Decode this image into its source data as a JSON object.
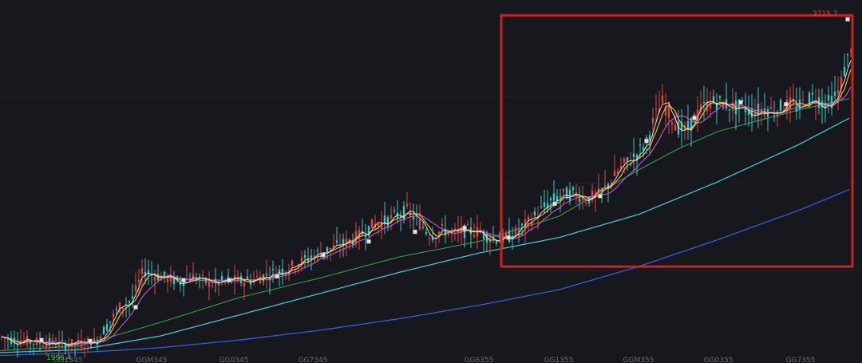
{
  "chart_data": {
    "type": "line",
    "series_type": "candlestick",
    "title": "",
    "xlabel": "",
    "ylabel": "",
    "ylim": [
      1950,
      3750
    ],
    "x_ticks": [
      "GG1345",
      "GGM345",
      "GG0345",
      "GG7345",
      "GG6355",
      "GG1355",
      "GGM355",
      "GG0355",
      "GG7355"
    ],
    "low_label": "1996.4",
    "high_label": "3715.7",
    "colors": {
      "up": "#e2453c",
      "down": "#39c6c1",
      "ma5": "#e8e8e8",
      "ma10": "#f2c230",
      "ma20": "#c459d8",
      "ma60": "#3f9a52",
      "ma120": "#45c4cf",
      "ma250": "#3b5bd8",
      "highlight_box": "#c8231f",
      "low_label": "#3cbf4e",
      "high_label": "#e0463c",
      "marker": "#e6e6e6"
    },
    "trend": {
      "x": [
        0,
        20,
        40,
        60,
        80,
        100,
        120,
        135,
        150,
        165,
        180,
        195,
        210,
        225,
        240,
        255,
        270,
        285,
        300,
        315,
        330,
        345,
        360,
        375,
        390,
        405,
        420,
        435,
        450,
        465,
        480,
        495,
        510,
        525,
        540,
        555,
        570,
        585,
        600,
        615,
        630,
        645,
        660,
        675,
        690,
        705,
        720,
        735,
        750,
        765,
        780,
        795,
        810,
        820,
        830,
        840,
        850,
        860,
        870,
        880,
        890,
        900,
        910,
        920,
        930,
        940,
        950,
        960,
        970,
        980,
        990,
        1000,
        1010,
        1020,
        1030,
        1040,
        1050,
        1060,
        1068
      ],
      "y": [
        2055,
        2040,
        2030,
        2025,
        2015,
        2020,
        2030,
        2120,
        2210,
        2245,
        2400,
        2375,
        2360,
        2340,
        2370,
        2345,
        2330,
        2350,
        2345,
        2350,
        2370,
        2390,
        2410,
        2440,
        2470,
        2500,
        2520,
        2545,
        2580,
        2630,
        2650,
        2680,
        2710,
        2650,
        2580,
        2610,
        2590,
        2605,
        2600,
        2570,
        2560,
        2590,
        2640,
        2700,
        2760,
        2790,
        2800,
        2770,
        2790,
        2860,
        2940,
        2990,
        3060,
        3190,
        3270,
        3200,
        3140,
        3120,
        3190,
        3240,
        3270,
        3270,
        3260,
        3240,
        3250,
        3220,
        3230,
        3240,
        3220,
        3250,
        3260,
        3240,
        3280,
        3300,
        3270,
        3270,
        3320,
        3460,
        3600
      ]
    },
    "ma60": {
      "x": [
        0,
        100,
        200,
        300,
        400,
        500,
        600,
        700,
        800,
        850,
        900,
        1000,
        1065
      ],
      "y": [
        1985,
        2010,
        2130,
        2260,
        2360,
        2470,
        2550,
        2680,
        2920,
        3030,
        3120,
        3230,
        3290
      ]
    },
    "ma120": {
      "x": [
        0,
        100,
        200,
        300,
        400,
        500,
        600,
        700,
        800,
        900,
        1000,
        1065
      ],
      "y": [
        1975,
        1990,
        2060,
        2170,
        2280,
        2390,
        2490,
        2570,
        2690,
        2860,
        3050,
        3190
      ]
    },
    "ma250": {
      "x": [
        0,
        100,
        200,
        300,
        400,
        500,
        600,
        700,
        800,
        900,
        1000,
        1065
      ],
      "y": [
        1960,
        1975,
        2000,
        2040,
        2090,
        2150,
        2220,
        2300,
        2420,
        2560,
        2710,
        2820
      ]
    },
    "markers": {
      "x": [
        52,
        113,
        170,
        230,
        287,
        347,
        405,
        462,
        520,
        582,
        637,
        695,
        752,
        810,
        870,
        928,
        985,
        1062
      ],
      "y": [
        2040,
        2035,
        2210,
        2350,
        2350,
        2370,
        2480,
        2550,
        2600,
        2620,
        2570,
        2745,
        2785,
        3070,
        3190,
        3270,
        3260,
        3700
      ]
    },
    "highlight": {
      "x_start": 628,
      "x_end": 1068,
      "y_low": 2420,
      "y_high": 3720
    }
  }
}
